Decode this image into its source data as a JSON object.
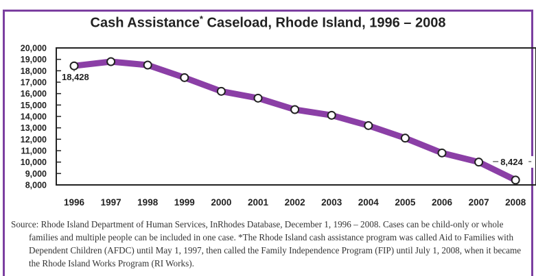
{
  "chart_data": {
    "type": "line",
    "title": "Cash Assistance",
    "title_mark": "*",
    "title_rest": " Caseload, Rhode Island, 1996 – 2008",
    "x": [
      "1996",
      "1997",
      "1998",
      "1999",
      "2000",
      "2001",
      "2002",
      "2003",
      "2004",
      "2005",
      "2006",
      "2007",
      "2008"
    ],
    "series": [
      {
        "values": [
          18428,
          18800,
          18500,
          17400,
          16200,
          15600,
          14600,
          14100,
          13200,
          12100,
          10800,
          10000,
          8424
        ]
      }
    ],
    "yticks": [
      "20,000",
      "19,000",
      "18,000",
      "17,000",
      "16,000",
      "15,000",
      "14,000",
      "13,000",
      "12,000",
      "11,000",
      "10,000",
      "9,000",
      "8,000"
    ],
    "ylim": [
      8000,
      20000
    ],
    "annotations": [
      {
        "x": "1996",
        "label": "18,428"
      },
      {
        "x": "2008",
        "label": "8,424"
      }
    ],
    "line_color": "#8b3fa6",
    "frame_color": "#7b3fa0"
  },
  "source_text": "Source: Rhode Island Department of Human Services, InRhodes Database, December 1, 1996 – 2008. Cases can be child-only or whole families and multiple people can be included in one case. *The Rhode Island cash assistance program was called Aid to Families with Dependent Children (AFDC) until May 1, 1997, then called the Family Independence Program (FIP) until July 1, 2008, when it became the Rhode Island Works Program (RI Works)."
}
